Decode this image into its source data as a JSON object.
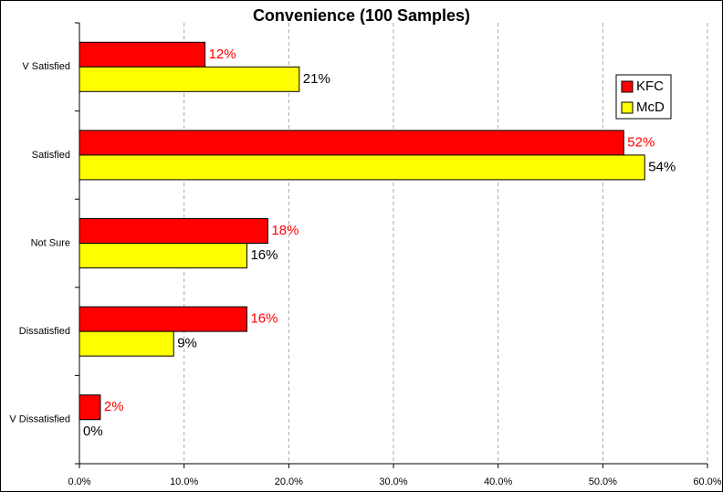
{
  "chart_data": {
    "type": "hbar",
    "title": "Convenience (100 Samples)",
    "categories": [
      "V Satisfied",
      "Satisfied",
      "Not Sure",
      "Dissatisfied",
      "V Dissatisfied"
    ],
    "series": [
      {
        "name": "KFC",
        "color": "#ff0000",
        "label_color": "#ff0000",
        "values": [
          12,
          52,
          18,
          16,
          2
        ],
        "value_labels": [
          "12%",
          "52%",
          "18%",
          "16%",
          "2%"
        ]
      },
      {
        "name": "McD",
        "color": "#ffff00",
        "label_color": "#000000",
        "values": [
          21,
          54,
          16,
          9,
          0
        ],
        "value_labels": [
          "21%",
          "54%",
          "16%",
          "9%",
          "0%"
        ]
      }
    ],
    "xlim": [
      0,
      60
    ],
    "xticks": [
      {
        "value": 0,
        "label": "0.0%"
      },
      {
        "value": 10,
        "label": "10.0%"
      },
      {
        "value": 20,
        "label": "20.0%"
      },
      {
        "value": 30,
        "label": "30.0%"
      },
      {
        "value": 40,
        "label": "40.0%"
      },
      {
        "value": 50,
        "label": "50.0%"
      },
      {
        "value": 60,
        "label": "60.0%"
      }
    ],
    "grid": true,
    "legend": "upper right"
  }
}
